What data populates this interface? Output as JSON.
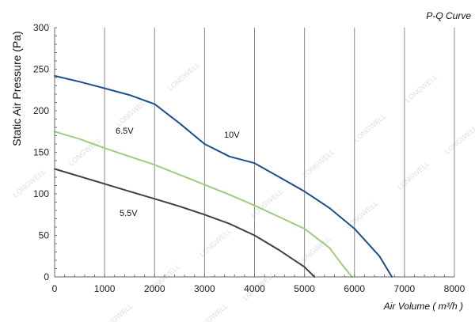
{
  "chart_data": {
    "type": "line",
    "title": "P-Q Curve",
    "xlabel": "Air Volume ( m³/h )",
    "ylabel": "Static Air Pressure  (Pa)",
    "xlim": [
      0,
      8000
    ],
    "ylim": [
      0,
      300
    ],
    "x_ticks": [
      0,
      1000,
      2000,
      3000,
      4000,
      5000,
      6000,
      7000,
      8000
    ],
    "y_ticks": [
      0,
      50,
      100,
      150,
      200,
      250,
      300
    ],
    "grid": {
      "vertical": true,
      "horizontal": false
    },
    "watermark": "LONGWELL",
    "series": [
      {
        "name": "10V",
        "color": "#1f4e8c",
        "points": [
          [
            0,
            242
          ],
          [
            500,
            235
          ],
          [
            1000,
            227
          ],
          [
            1500,
            219
          ],
          [
            2000,
            208
          ],
          [
            2500,
            185
          ],
          [
            3000,
            160
          ],
          [
            3500,
            145
          ],
          [
            4000,
            137
          ],
          [
            4500,
            120
          ],
          [
            5000,
            103
          ],
          [
            5500,
            83
          ],
          [
            6000,
            58
          ],
          [
            6500,
            25
          ],
          [
            6750,
            0
          ]
        ]
      },
      {
        "name": "6.5V",
        "color": "#9ccc7f",
        "points": [
          [
            0,
            175
          ],
          [
            500,
            166
          ],
          [
            1000,
            155
          ],
          [
            1500,
            145
          ],
          [
            2000,
            135
          ],
          [
            2500,
            123
          ],
          [
            3000,
            111
          ],
          [
            3500,
            99
          ],
          [
            4000,
            86
          ],
          [
            4500,
            72
          ],
          [
            5000,
            58
          ],
          [
            5500,
            35
          ],
          [
            5750,
            15
          ],
          [
            5950,
            0
          ]
        ]
      },
      {
        "name": "5.5V",
        "color": "#404040",
        "points": [
          [
            0,
            130
          ],
          [
            500,
            121
          ],
          [
            1000,
            112
          ],
          [
            1500,
            103
          ],
          [
            2000,
            94
          ],
          [
            2500,
            85
          ],
          [
            3000,
            75
          ],
          [
            3500,
            64
          ],
          [
            4000,
            50
          ],
          [
            4500,
            32
          ],
          [
            5000,
            12
          ],
          [
            5200,
            0
          ]
        ]
      }
    ]
  }
}
